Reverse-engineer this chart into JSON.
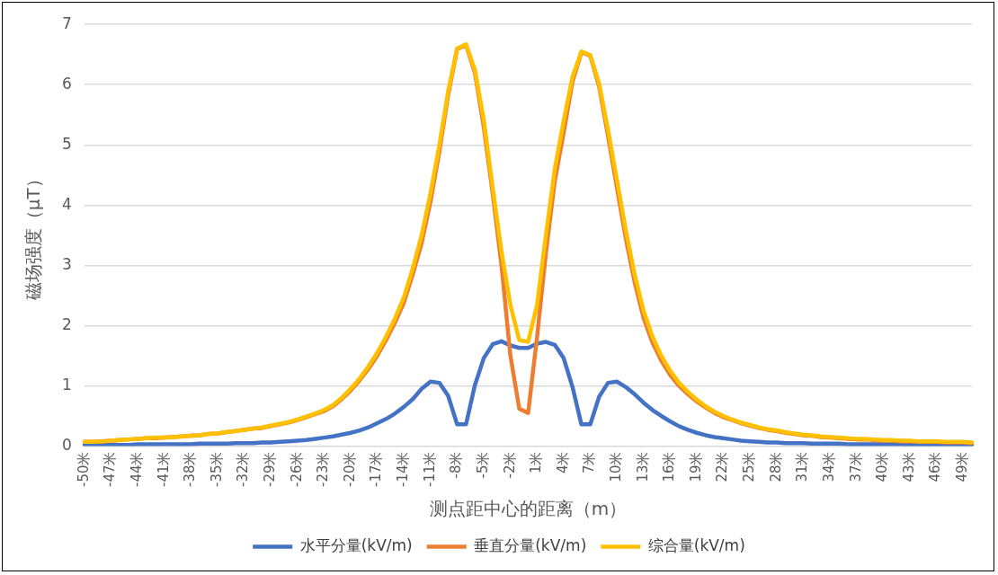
{
  "chart_data": {
    "type": "line",
    "xlabel": "测点距中心的距离（m）",
    "ylabel": "磁场强度（μT）",
    "categories": [
      "-50米",
      null,
      null,
      "-47米",
      null,
      null,
      "-44米",
      null,
      null,
      "-41米",
      null,
      null,
      "-38米",
      null,
      null,
      "-35米",
      null,
      null,
      "-32米",
      null,
      null,
      "-29米",
      null,
      null,
      "-26米",
      null,
      null,
      "-23米",
      null,
      null,
      "-20米",
      null,
      null,
      "-17米",
      null,
      null,
      "-14米",
      null,
      null,
      "-11米",
      null,
      null,
      "-8米",
      null,
      null,
      "-5米",
      null,
      null,
      "-2米",
      null,
      null,
      "1米",
      null,
      null,
      "4米",
      null,
      null,
      "7米",
      null,
      null,
      "10米",
      null,
      null,
      "13米",
      null,
      null,
      "16米",
      null,
      null,
      "19米",
      null,
      null,
      "22米",
      null,
      null,
      "25米",
      null,
      null,
      "28米",
      null,
      null,
      "31米",
      null,
      null,
      "34米",
      null,
      null,
      "37米",
      null,
      null,
      "40米",
      null,
      null,
      "43米",
      null,
      null,
      "46米",
      null,
      null,
      "49米",
      null
    ],
    "series": [
      {
        "name": "水平分量(kV/m)",
        "color": "#4472c4",
        "values": [
          0.02,
          0.02,
          0.02,
          0.02,
          0.02,
          0.02,
          0.03,
          0.03,
          0.03,
          0.03,
          0.03,
          0.03,
          0.03,
          0.04,
          0.04,
          0.04,
          0.04,
          0.05,
          0.05,
          0.05,
          0.06,
          0.06,
          0.07,
          0.08,
          0.09,
          0.1,
          0.12,
          0.14,
          0.16,
          0.19,
          0.22,
          0.26,
          0.31,
          0.38,
          0.45,
          0.54,
          0.65,
          0.78,
          0.95,
          1.07,
          1.05,
          0.83,
          0.36,
          0.36,
          1.01,
          1.46,
          1.69,
          1.74,
          1.67,
          1.63,
          1.63,
          1.7,
          1.73,
          1.68,
          1.46,
          0.98,
          0.36,
          0.36,
          0.82,
          1.05,
          1.07,
          0.98,
          0.86,
          0.72,
          0.6,
          0.5,
          0.41,
          0.33,
          0.27,
          0.22,
          0.18,
          0.15,
          0.13,
          0.11,
          0.09,
          0.08,
          0.07,
          0.06,
          0.06,
          0.05,
          0.05,
          0.05,
          0.04,
          0.04,
          0.04,
          0.04,
          0.03,
          0.03,
          0.03,
          0.03,
          0.03,
          0.03,
          0.03,
          0.02,
          0.02,
          0.02,
          0.02,
          0.02,
          0.02,
          0.02,
          0.02
        ]
      },
      {
        "name": "垂直分量(kV/m)",
        "color": "#ed7d31",
        "values": [
          0.07,
          0.07,
          0.08,
          0.09,
          0.1,
          0.11,
          0.12,
          0.13,
          0.13,
          0.14,
          0.15,
          0.16,
          0.17,
          0.18,
          0.2,
          0.21,
          0.23,
          0.25,
          0.27,
          0.29,
          0.3,
          0.33,
          0.36,
          0.39,
          0.43,
          0.48,
          0.53,
          0.58,
          0.66,
          0.78,
          0.92,
          1.09,
          1.28,
          1.5,
          1.76,
          2.05,
          2.38,
          2.85,
          3.37,
          4.06,
          4.89,
          5.84,
          6.59,
          6.66,
          6.2,
          5.3,
          4.2,
          3.0,
          1.5,
          0.62,
          0.55,
          1.8,
          3.2,
          4.4,
          5.2,
          6.05,
          6.54,
          6.48,
          5.97,
          5.15,
          4.29,
          3.45,
          2.72,
          2.13,
          1.72,
          1.42,
          1.18,
          1.0,
          0.86,
          0.74,
          0.64,
          0.55,
          0.48,
          0.43,
          0.38,
          0.34,
          0.3,
          0.27,
          0.25,
          0.22,
          0.2,
          0.18,
          0.17,
          0.15,
          0.14,
          0.13,
          0.12,
          0.11,
          0.11,
          0.1,
          0.09,
          0.09,
          0.08,
          0.08,
          0.07,
          0.07,
          0.07,
          0.06,
          0.06,
          0.06,
          0.05
        ]
      },
      {
        "name": "综合量(kV/m)",
        "color": "#ffc000",
        "values": [
          0.07,
          0.07,
          0.08,
          0.09,
          0.1,
          0.11,
          0.12,
          0.13,
          0.14,
          0.14,
          0.15,
          0.16,
          0.17,
          0.18,
          0.2,
          0.21,
          0.23,
          0.25,
          0.27,
          0.29,
          0.31,
          0.34,
          0.37,
          0.4,
          0.44,
          0.49,
          0.54,
          0.6,
          0.68,
          0.8,
          0.95,
          1.12,
          1.32,
          1.55,
          1.82,
          2.12,
          2.47,
          2.95,
          3.5,
          4.2,
          5.0,
          5.9,
          6.6,
          6.67,
          6.25,
          5.42,
          4.3,
          3.23,
          2.34,
          1.76,
          1.73,
          2.34,
          3.5,
          4.6,
          5.4,
          6.13,
          6.55,
          6.49,
          6.02,
          5.25,
          4.42,
          3.59,
          2.85,
          2.25,
          1.82,
          1.5,
          1.25,
          1.05,
          0.9,
          0.77,
          0.66,
          0.57,
          0.5,
          0.44,
          0.39,
          0.35,
          0.31,
          0.28,
          0.26,
          0.23,
          0.21,
          0.19,
          0.18,
          0.16,
          0.15,
          0.14,
          0.13,
          0.12,
          0.12,
          0.11,
          0.1,
          0.1,
          0.09,
          0.09,
          0.08,
          0.08,
          0.08,
          0.07,
          0.07,
          0.07,
          0.06
        ]
      }
    ],
    "ylim": [
      0,
      7
    ],
    "yticks": [
      0,
      1,
      2,
      3,
      4,
      5,
      6,
      7
    ],
    "grid": "y",
    "legend": "bottom",
    "marker": "none",
    "line_style": "solid"
  }
}
